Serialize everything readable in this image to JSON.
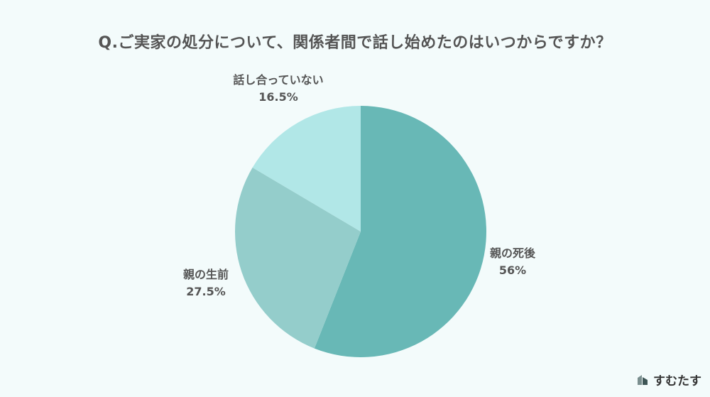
{
  "title": "Q.ご実家の処分について、関係者間で話し始めたのはいつからですか？",
  "chart_data": {
    "type": "pie",
    "title": "Q.ご実家の処分について、関係者間で話し始めたのはいつからですか？",
    "start_angle_deg": 0,
    "direction": "clockwise",
    "slices": [
      {
        "label": "親の死後",
        "value": 56,
        "value_text": "56%",
        "color": "#68b8b6"
      },
      {
        "label": "親の生前",
        "value": 27.5,
        "value_text": "27.5%",
        "color": "#94cdcb"
      },
      {
        "label": "話し合っていない",
        "value": 16.5,
        "value_text": "16.5%",
        "color": "#b1e7e7"
      }
    ]
  },
  "brand": {
    "name": "すむたす",
    "logo_icon": "sumutasu-logo-icon"
  },
  "colors": {
    "background": "#f3fbfb",
    "text": "#555555"
  }
}
